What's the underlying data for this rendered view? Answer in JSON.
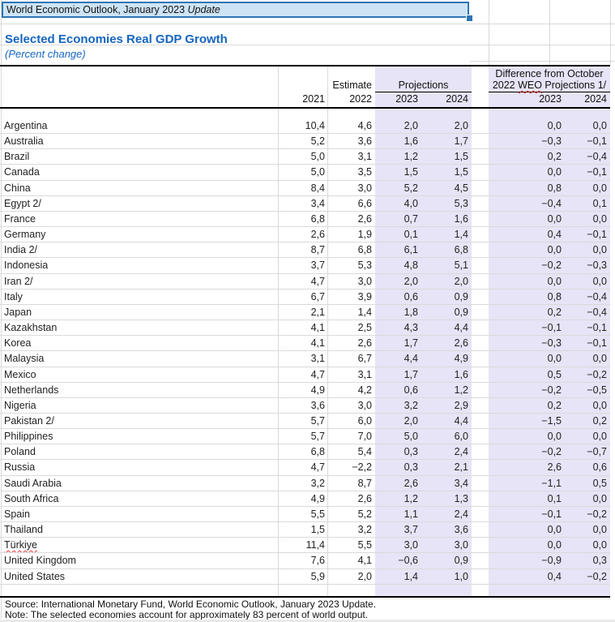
{
  "titlebar": {
    "text_main": "World Economic Outlook, January 2023 ",
    "text_italic": "Update"
  },
  "heading": {
    "title": "Selected Economies Real GDP Growth",
    "subtitle": "(Percent change)"
  },
  "table": {
    "group_headers": {
      "estimate_label": "Estimate",
      "projections_label": "Projections",
      "difference_line1": "Difference from October",
      "difference_line2_pre": "2022 ",
      "difference_line2_misspelled": "WEO",
      "difference_line2_post": " Projections 1/"
    },
    "year_headers": [
      "2021",
      "2022",
      "2023",
      "2024",
      "2023",
      "2024"
    ],
    "rows": [
      {
        "name": "Argentina",
        "values": [
          "10,4",
          "4,6",
          "2,0",
          "2,0",
          "0,0",
          "0,0"
        ]
      },
      {
        "name": "Australia",
        "values": [
          "5,2",
          "3,6",
          "1,6",
          "1,7",
          "−0,3",
          "−0,1"
        ]
      },
      {
        "name": "Brazil",
        "values": [
          "5,0",
          "3,1",
          "1,2",
          "1,5",
          "0,2",
          "−0,4"
        ]
      },
      {
        "name": "Canada",
        "values": [
          "5,0",
          "3,5",
          "1,5",
          "1,5",
          "0,0",
          "−0,1"
        ]
      },
      {
        "name": "China",
        "values": [
          "8,4",
          "3,0",
          "5,2",
          "4,5",
          "0,8",
          "0,0"
        ]
      },
      {
        "name": "Egypt 2/",
        "values": [
          "3,4",
          "6,6",
          "4,0",
          "5,3",
          "−0,4",
          "0,1"
        ]
      },
      {
        "name": "France",
        "values": [
          "6,8",
          "2,6",
          "0,7",
          "1,6",
          "0,0",
          "0,0"
        ]
      },
      {
        "name": "Germany",
        "values": [
          "2,6",
          "1,9",
          "0,1",
          "1,4",
          "0,4",
          "−0,1"
        ]
      },
      {
        "name": "India 2/",
        "values": [
          "8,7",
          "6,8",
          "6,1",
          "6,8",
          "0,0",
          "0,0"
        ]
      },
      {
        "name": "Indonesia",
        "values": [
          "3,7",
          "5,3",
          "4,8",
          "5,1",
          "−0,2",
          "−0,3"
        ]
      },
      {
        "name": "Iran 2/",
        "values": [
          "4,7",
          "3,0",
          "2,0",
          "2,0",
          "0,0",
          "0,0"
        ]
      },
      {
        "name": "Italy",
        "values": [
          "6,7",
          "3,9",
          "0,6",
          "0,9",
          "0,8",
          "−0,4"
        ]
      },
      {
        "name": "Japan",
        "values": [
          "2,1",
          "1,4",
          "1,8",
          "0,9",
          "0,2",
          "−0,4"
        ]
      },
      {
        "name": "Kazakhstan",
        "values": [
          "4,1",
          "2,5",
          "4,3",
          "4,4",
          "−0,1",
          "−0,1"
        ]
      },
      {
        "name": "Korea",
        "values": [
          "4,1",
          "2,6",
          "1,7",
          "2,6",
          "−0,3",
          "−0,1"
        ]
      },
      {
        "name": "Malaysia",
        "values": [
          "3,1",
          "6,7",
          "4,4",
          "4,9",
          "0,0",
          "0,0"
        ]
      },
      {
        "name": "Mexico",
        "values": [
          "4,7",
          "3,1",
          "1,7",
          "1,6",
          "0,5",
          "−0,2"
        ]
      },
      {
        "name": "Netherlands",
        "values": [
          "4,9",
          "4,2",
          "0,6",
          "1,2",
          "−0,2",
          "−0,5"
        ]
      },
      {
        "name": "Nigeria",
        "values": [
          "3,6",
          "3,0",
          "3,2",
          "2,9",
          "0,2",
          "0,0"
        ]
      },
      {
        "name": "Pakistan 2/",
        "values": [
          "5,7",
          "6,0",
          "2,0",
          "4,4",
          "−1,5",
          "0,2"
        ]
      },
      {
        "name": "Philippines",
        "values": [
          "5,7",
          "7,0",
          "5,0",
          "6,0",
          "0,0",
          "0,0"
        ]
      },
      {
        "name": "Poland",
        "values": [
          "6,8",
          "5,4",
          "0,3",
          "2,4",
          "−0,2",
          "−0,7"
        ]
      },
      {
        "name": "Russia",
        "values": [
          "4,7",
          "−2,2",
          "0,3",
          "2,1",
          "2,6",
          "0,6"
        ]
      },
      {
        "name": "Saudi Arabia",
        "values": [
          "3,2",
          "8,7",
          "2,6",
          "3,4",
          "−1,1",
          "0,5"
        ]
      },
      {
        "name": "South Africa",
        "values": [
          "4,9",
          "2,6",
          "1,2",
          "1,3",
          "0,1",
          "0,0"
        ]
      },
      {
        "name": "Spain",
        "values": [
          "5,5",
          "5,2",
          "1,1",
          "2,4",
          "−0,1",
          "−0,2"
        ]
      },
      {
        "name": "Thailand",
        "values": [
          "1,5",
          "3,2",
          "3,7",
          "3,6",
          "0,0",
          "0,0"
        ]
      },
      {
        "name": "Türkiye",
        "misspelled": true,
        "values": [
          "11,4",
          "5,5",
          "3,0",
          "3,0",
          "0,0",
          "0,0"
        ]
      },
      {
        "name": "United Kingdom",
        "values": [
          "7,6",
          "4,1",
          "−0,6",
          "0,9",
          "−0,9",
          "0,3"
        ]
      },
      {
        "name": "United States",
        "values": [
          "5,9",
          "2,0",
          "1,4",
          "1,0",
          "0,4",
          "−0,2"
        ]
      }
    ]
  },
  "footer": {
    "source": "Source: International Monetary Fund, World Economic Outlook, January 2023 Update.",
    "note": "Note: The selected economies account for approximately 83 percent of world output."
  },
  "colors": {
    "accent_blue": "#1565c0",
    "selection_border": "#2e75b6",
    "selection_fill": "#cde4f6",
    "column_group_fill": "#e6e4f6",
    "gridline": "#d9d9d9",
    "spellcheck_red": "#e53935"
  }
}
